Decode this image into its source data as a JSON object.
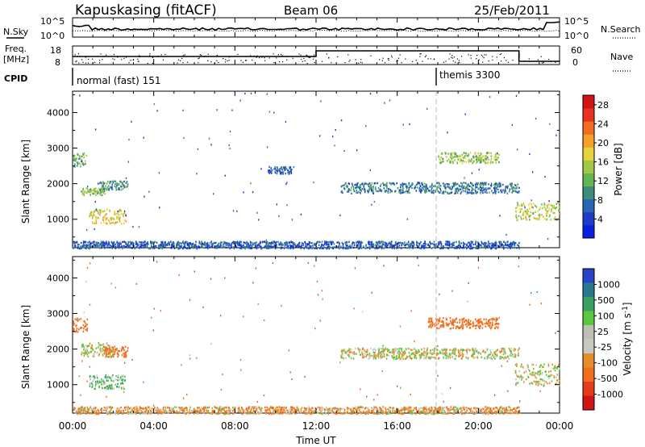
{
  "header": {
    "station": "Kapuskasing (fitACF)",
    "beam": "Beam 06",
    "date": "25/Feb/2011"
  },
  "top_panel": {
    "left_label": "N.Sky",
    "left_ticks": [
      "10^5",
      "10^0"
    ],
    "right_label": "N.Search",
    "right_ticks": [
      "10^5",
      "10^0"
    ]
  },
  "freq_panel": {
    "left_label_1": "Freq.",
    "left_label_2": "[MHz]",
    "left_ticks": [
      "18",
      "8"
    ],
    "right_label": "Nave",
    "right_ticks": [
      "60",
      "0"
    ]
  },
  "cpid": {
    "label": "CPID",
    "modes": [
      "normal (fast) 151",
      "themis 3300"
    ]
  },
  "time_axis": {
    "label": "Time UT",
    "ticks": [
      "00:00",
      "04:00",
      "08:00",
      "12:00",
      "16:00",
      "20:00",
      "00:00"
    ]
  },
  "colors": {
    "power_scale": [
      "#0a1ee0",
      "#1e3cc8",
      "#2a64b4",
      "#3c8c78",
      "#64b450",
      "#a0c846",
      "#e6d23c",
      "#f5a028",
      "#f06e1e",
      "#e6321e",
      "#d21414"
    ],
    "velocity_scale": [
      "#2844c8",
      "#2a7890",
      "#3ca064",
      "#5ac83c",
      "#bebeb4",
      "#c8c8c0",
      "#e68c28",
      "#f06e1e",
      "#e63c1e",
      "#d21414"
    ]
  },
  "chart_data": [
    {
      "type": "heatmap",
      "name": "power",
      "ylabel": "Slant Range [km]",
      "yticks": [
        "1000",
        "2000",
        "3000",
        "4000"
      ],
      "ylim": [
        200,
        4600
      ],
      "xlim": [
        0,
        24
      ],
      "colorbar_label": "Power [dB]",
      "colorbar_ticks": [
        "4",
        "8",
        "12",
        "16",
        "20",
        "24",
        "28"
      ],
      "colorbar_range": [
        0,
        30
      ],
      "echo_regions": [
        {
          "t0": 0.0,
          "t1": 0.7,
          "r0": 2500,
          "r1": 2900,
          "value": 12
        },
        {
          "t0": 0.4,
          "t1": 1.6,
          "r0": 1700,
          "r1": 1900,
          "value": 14
        },
        {
          "t0": 0.8,
          "t1": 2.6,
          "r0": 900,
          "r1": 1300,
          "value": 18
        },
        {
          "t0": 1.3,
          "t1": 2.7,
          "r0": 1850,
          "r1": 2100,
          "value": 10
        },
        {
          "t0": 9.6,
          "t1": 10.8,
          "r0": 2300,
          "r1": 2500,
          "value": 6
        },
        {
          "t0": 13.2,
          "t1": 22.0,
          "r0": 1750,
          "r1": 2050,
          "value": 8
        },
        {
          "t0": 18.0,
          "t1": 21.0,
          "r0": 2600,
          "r1": 2900,
          "value": 14
        },
        {
          "t0": 21.8,
          "t1": 24.0,
          "r0": 1000,
          "r1": 1500,
          "value": 16
        },
        {
          "t0": 0.0,
          "t1": 22.0,
          "r0": 200,
          "r1": 400,
          "value": 6
        }
      ]
    },
    {
      "type": "heatmap",
      "name": "velocity",
      "ylabel": "Slant Range [km]",
      "yticks": [
        "1000",
        "2000",
        "3000",
        "4000"
      ],
      "ylim": [
        200,
        4600
      ],
      "xlim": [
        0,
        24
      ],
      "colorbar_label": "Velocity [m s^-1]",
      "colorbar_ticks": [
        "1000",
        "500",
        "100",
        "25",
        "-25",
        "-100",
        "-500",
        "-1000"
      ],
      "echo_regions": [
        {
          "t0": 0.0,
          "t1": 0.7,
          "r0": 2500,
          "r1": 2900,
          "value": -400
        },
        {
          "t0": 0.4,
          "t1": 2.0,
          "r0": 1800,
          "r1": 2200,
          "value": 0
        },
        {
          "t0": 0.8,
          "t1": 2.6,
          "r0": 900,
          "r1": 1300,
          "value": 80
        },
        {
          "t0": 1.5,
          "t1": 2.7,
          "r0": 1800,
          "r1": 2100,
          "value": -300
        },
        {
          "t0": 13.2,
          "t1": 22.0,
          "r0": 1750,
          "r1": 2050,
          "value": 0
        },
        {
          "t0": 17.5,
          "t1": 21.0,
          "r0": 2600,
          "r1": 2900,
          "value": -400
        },
        {
          "t0": 21.8,
          "t1": 24.0,
          "r0": 1000,
          "r1": 1600,
          "value": 0
        },
        {
          "t0": 0.0,
          "t1": 22.0,
          "r0": 200,
          "r1": 400,
          "value": -60
        }
      ]
    }
  ]
}
